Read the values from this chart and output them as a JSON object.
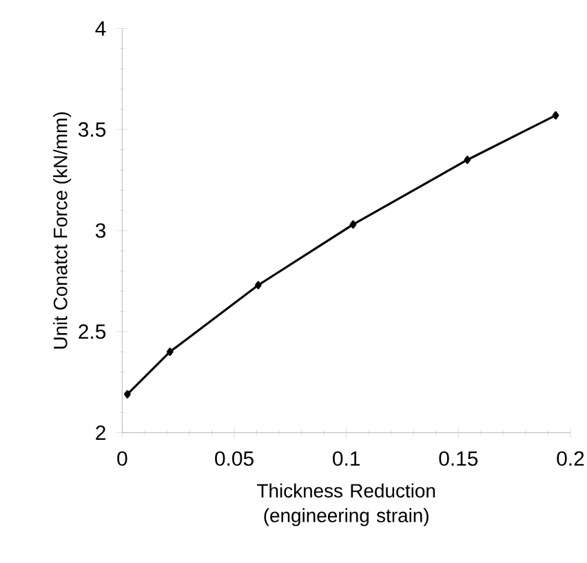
{
  "chart_data": {
    "type": "line",
    "xlabel": "Thickness Reduction (engineering strain)",
    "ylabel": "Unit Conatct Force (kN/mm)",
    "x": [
      0.0023,
      0.0213,
      0.0607,
      0.103,
      0.154,
      0.1934
    ],
    "series": [
      {
        "color": "#000000",
        "values": [
          2.19,
          2.4,
          2.73,
          3.03,
          3.35,
          3.57
        ]
      }
    ],
    "xlim": [
      0,
      0.2
    ],
    "ylim": [
      2,
      4
    ],
    "xticks": [
      0,
      0.05,
      0.1,
      0.15,
      0.2
    ],
    "yticks": [
      2,
      2.5,
      3,
      3.5,
      4
    ],
    "marker": "diamond",
    "line_style": "solid"
  }
}
